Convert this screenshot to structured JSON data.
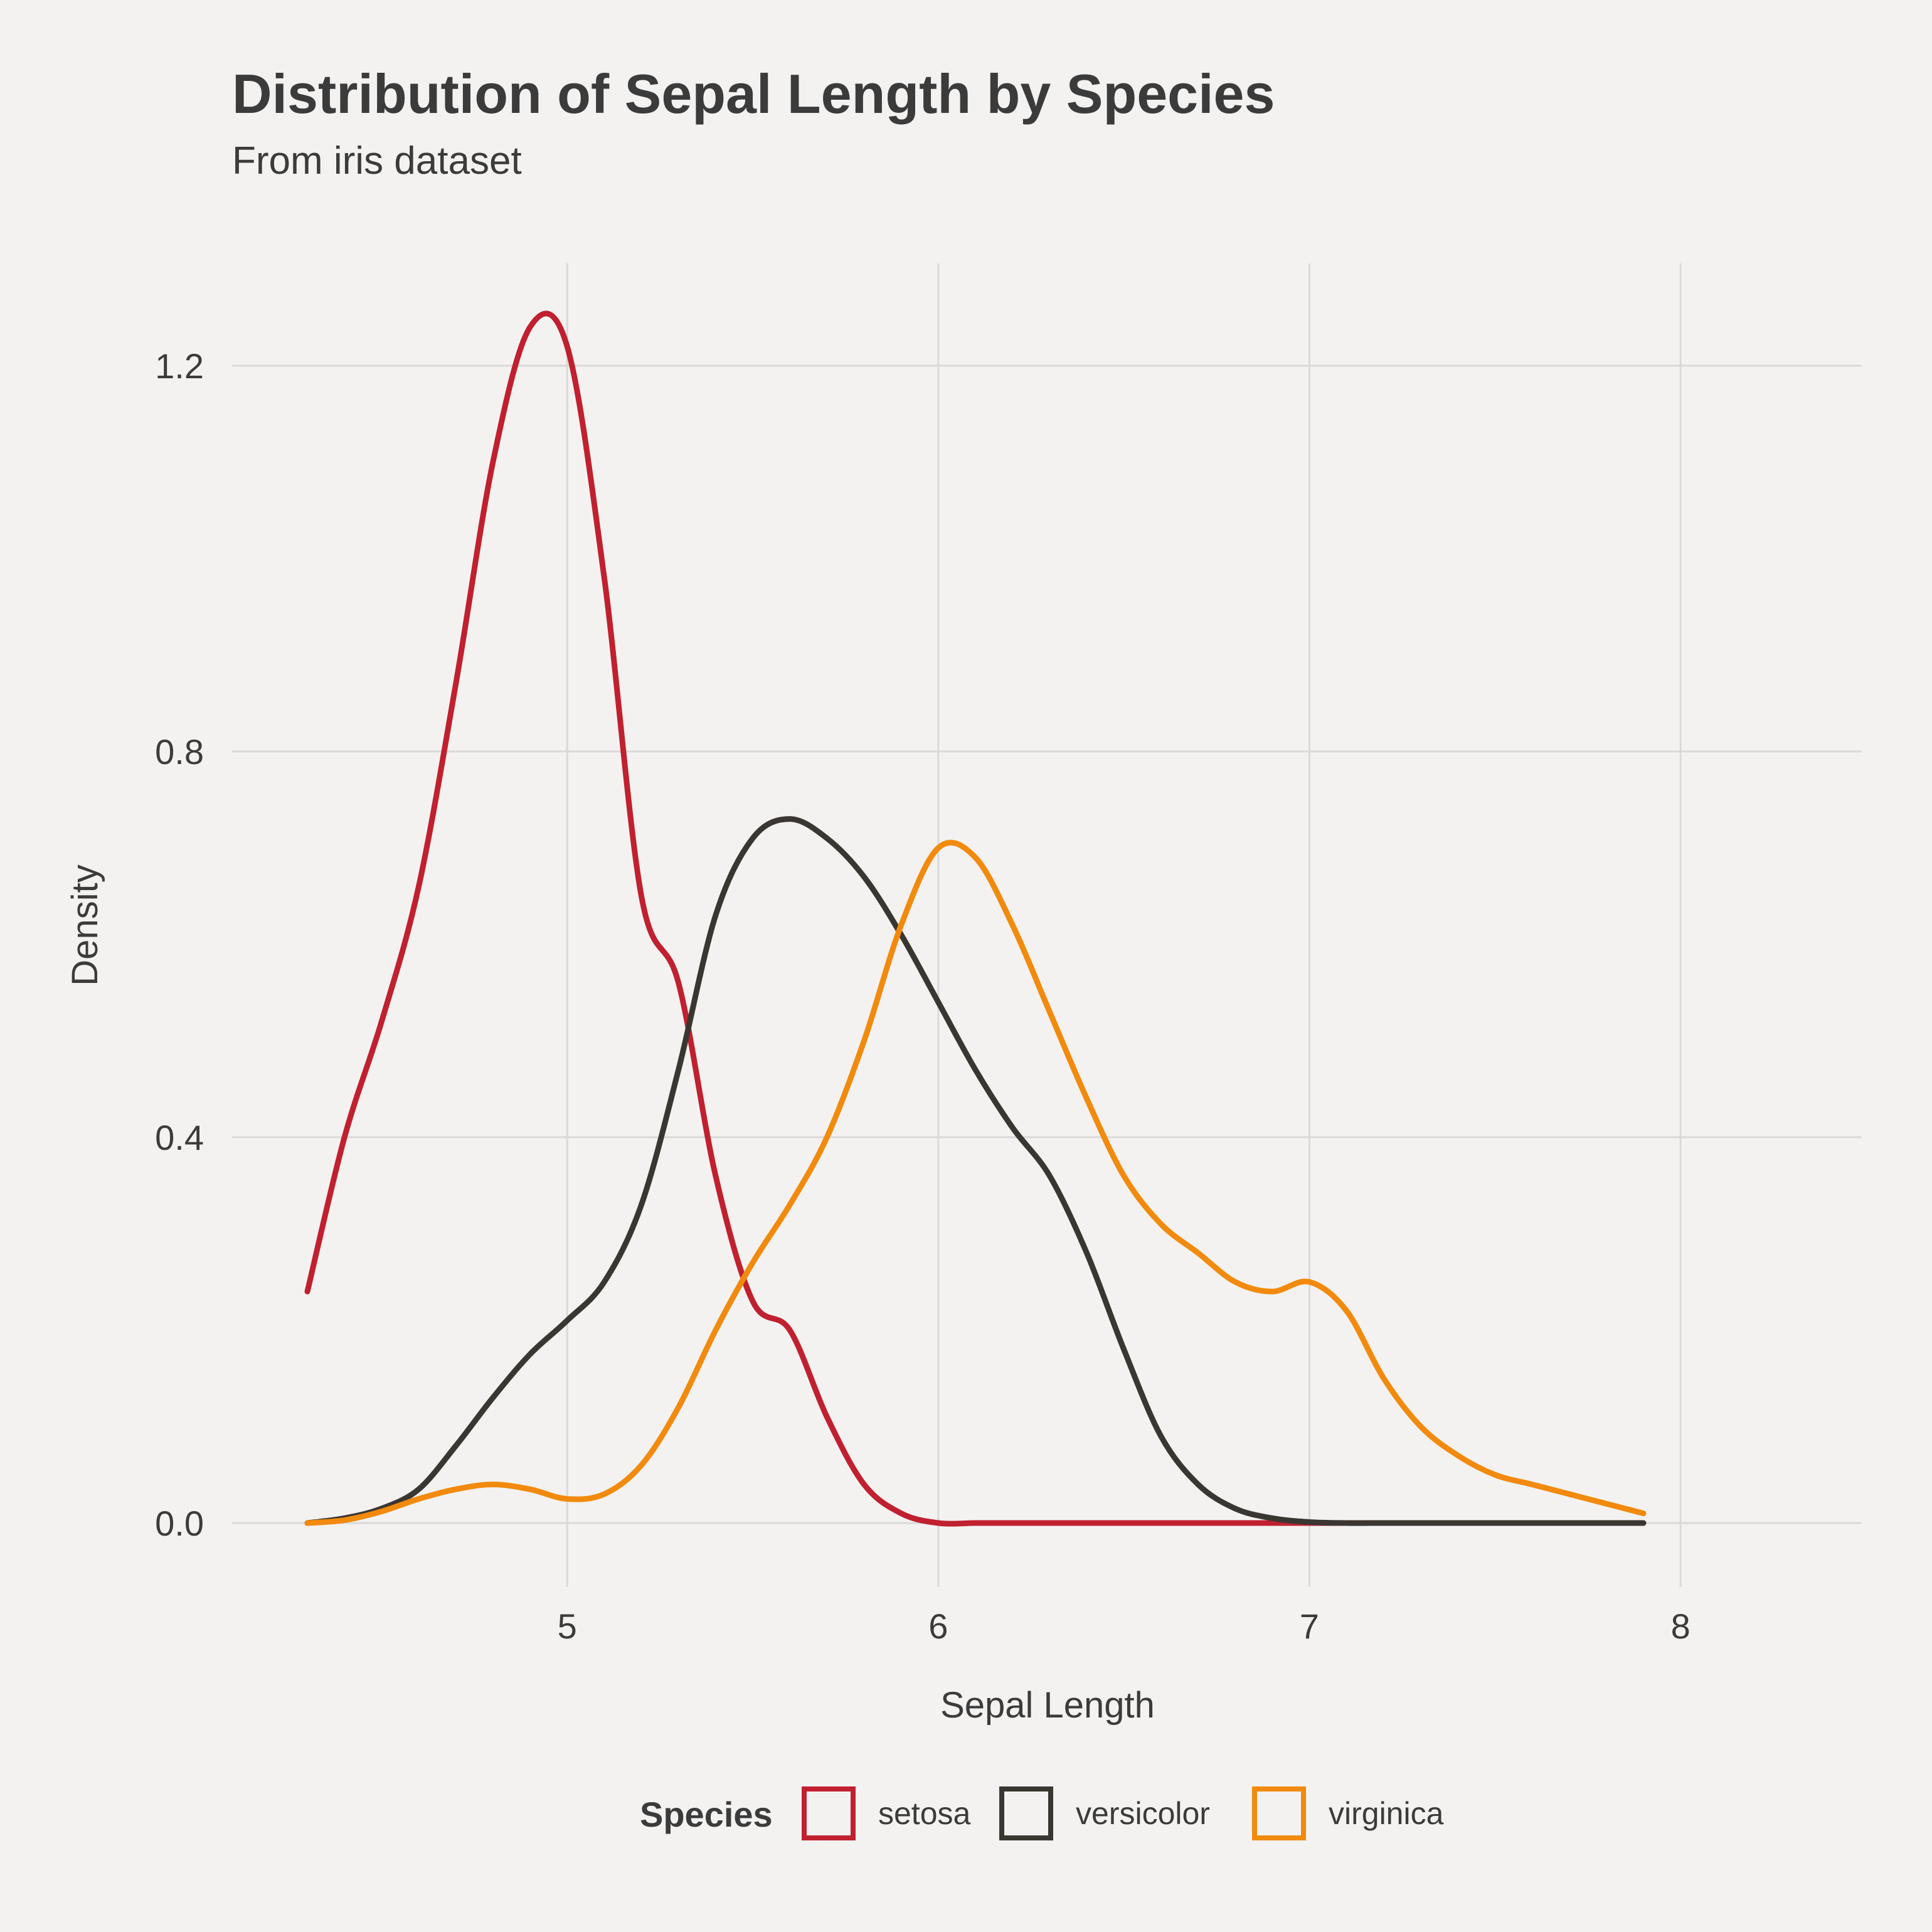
{
  "chart_data": {
    "type": "line",
    "title": "Distribution of Sepal Length by Species",
    "subtitle": "From iris dataset",
    "xlabel": "Sepal Length",
    "ylabel": "Density",
    "xlim": [
      4.3,
      7.9
    ],
    "ylim": [
      0,
      1.3
    ],
    "xticks": [
      5,
      6,
      7,
      8
    ],
    "xtick_labels": [
      "5",
      "6",
      "7",
      "8"
    ],
    "yticks": [
      0,
      0.4,
      0.8,
      1.2
    ],
    "ytick_labels": [
      "0.0",
      "0.4",
      "0.8",
      "1.2"
    ],
    "grid": true,
    "legend": {
      "title": "Species",
      "position": "bottom"
    },
    "x": [
      4.3,
      4.4,
      4.5,
      4.6,
      4.7,
      4.8,
      4.9,
      5.0,
      5.1,
      5.2,
      5.3,
      5.4,
      5.5,
      5.6,
      5.7,
      5.8,
      5.9,
      6.0,
      6.1,
      6.2,
      6.3,
      6.4,
      6.5,
      6.6,
      6.7,
      6.8,
      6.9,
      7.0,
      7.1,
      7.2,
      7.3,
      7.4,
      7.5,
      7.6,
      7.7,
      7.8,
      7.9
    ],
    "series": [
      {
        "name": "setosa",
        "color": "#c0202f",
        "values": [
          0.24,
          0.4,
          0.52,
          0.66,
          0.87,
          1.1,
          1.24,
          1.22,
          0.98,
          0.65,
          0.56,
          0.36,
          0.23,
          0.2,
          0.11,
          0.04,
          0.01,
          0.0,
          0.0,
          0.0,
          0.0,
          0.0,
          0.0,
          0.0,
          0.0,
          0.0,
          0.0,
          0.0,
          0.0,
          0.0,
          0.0,
          0.0,
          0.0,
          0.0,
          0.0,
          0.0,
          0.0
        ]
      },
      {
        "name": "versicolor",
        "color": "#3a3632",
        "values": [
          0.0,
          0.005,
          0.015,
          0.035,
          0.08,
          0.13,
          0.175,
          0.21,
          0.25,
          0.33,
          0.47,
          0.63,
          0.71,
          0.73,
          0.71,
          0.67,
          0.61,
          0.54,
          0.47,
          0.41,
          0.36,
          0.28,
          0.18,
          0.09,
          0.04,
          0.015,
          0.005,
          0.001,
          0.0,
          0.0,
          0.0,
          0.0,
          0.0,
          0.0,
          0.0,
          0.0,
          0.0
        ]
      },
      {
        "name": "virginica",
        "color": "#f28a0d",
        "values": [
          0.0,
          0.003,
          0.012,
          0.025,
          0.035,
          0.04,
          0.035,
          0.025,
          0.03,
          0.06,
          0.12,
          0.2,
          0.27,
          0.33,
          0.4,
          0.5,
          0.62,
          0.7,
          0.69,
          0.62,
          0.53,
          0.44,
          0.36,
          0.31,
          0.28,
          0.25,
          0.24,
          0.25,
          0.22,
          0.15,
          0.1,
          0.07,
          0.05,
          0.04,
          0.03,
          0.02,
          0.01
        ]
      }
    ]
  }
}
